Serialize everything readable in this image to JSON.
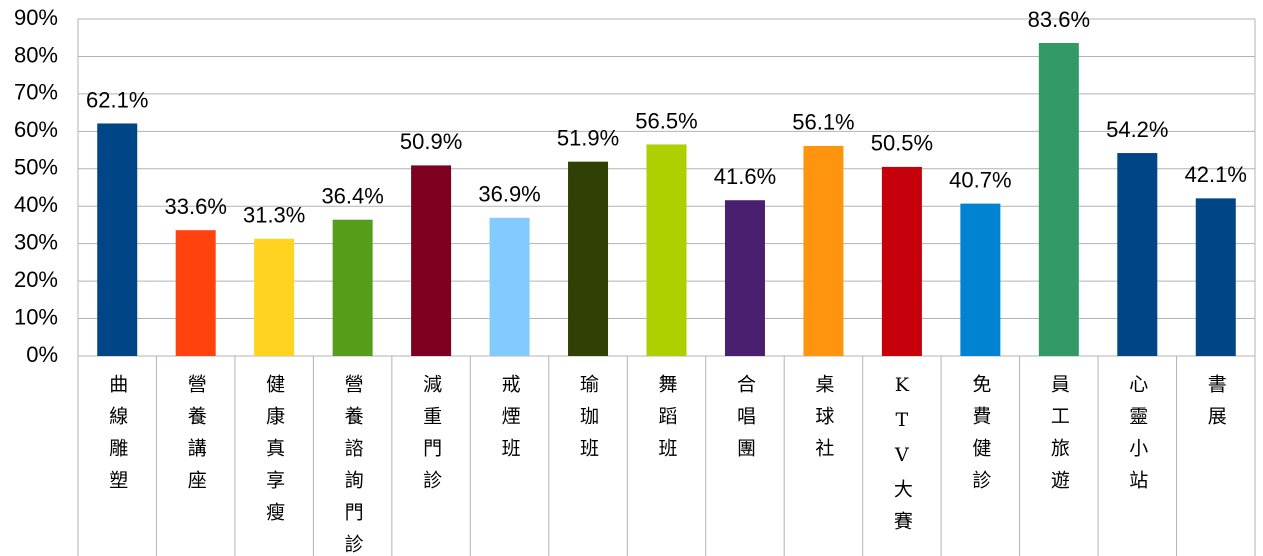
{
  "chart_data": {
    "type": "bar",
    "categories": [
      "曲線雕塑",
      "營養講座",
      "健康真享瘦",
      "營養諮詢門診",
      "減重門診",
      "戒煙班",
      "瑜珈班",
      "舞蹈班",
      "合唱團",
      "桌球社",
      "KTV大賽",
      "免費健診",
      "員工旅遊",
      "心靈小站",
      "書展"
    ],
    "values": [
      62.1,
      33.6,
      31.3,
      36.4,
      50.9,
      36.9,
      51.9,
      56.5,
      41.6,
      56.1,
      50.5,
      40.7,
      83.6,
      54.2,
      42.1
    ],
    "value_labels": [
      "62.1%",
      "33.6%",
      "31.3%",
      "36.4%",
      "50.9%",
      "36.9%",
      "51.9%",
      "56.5%",
      "41.6%",
      "56.1%",
      "50.5%",
      "40.7%",
      "83.6%",
      "54.2%",
      "42.1%"
    ],
    "colors": [
      "#004586",
      "#ff420e",
      "#ffd320",
      "#579d1c",
      "#7e0021",
      "#83caff",
      "#314004",
      "#aecf00",
      "#4b1f6f",
      "#ff950e",
      "#c5000b",
      "#0084d1",
      "#339966",
      "#004586",
      "#004586"
    ],
    "ylim": [
      0,
      90
    ],
    "yticks": [
      {
        "value": 0,
        "label": "0%"
      },
      {
        "value": 10,
        "label": "10%"
      },
      {
        "value": 20,
        "label": "20%"
      },
      {
        "value": 30,
        "label": "30%"
      },
      {
        "value": 40,
        "label": "40%"
      },
      {
        "value": 50,
        "label": "50%"
      },
      {
        "value": 60,
        "label": "60%"
      },
      {
        "value": 70,
        "label": "70%"
      },
      {
        "value": 80,
        "label": "80%"
      },
      {
        "value": 90,
        "label": "90%"
      }
    ],
    "grid": true
  }
}
